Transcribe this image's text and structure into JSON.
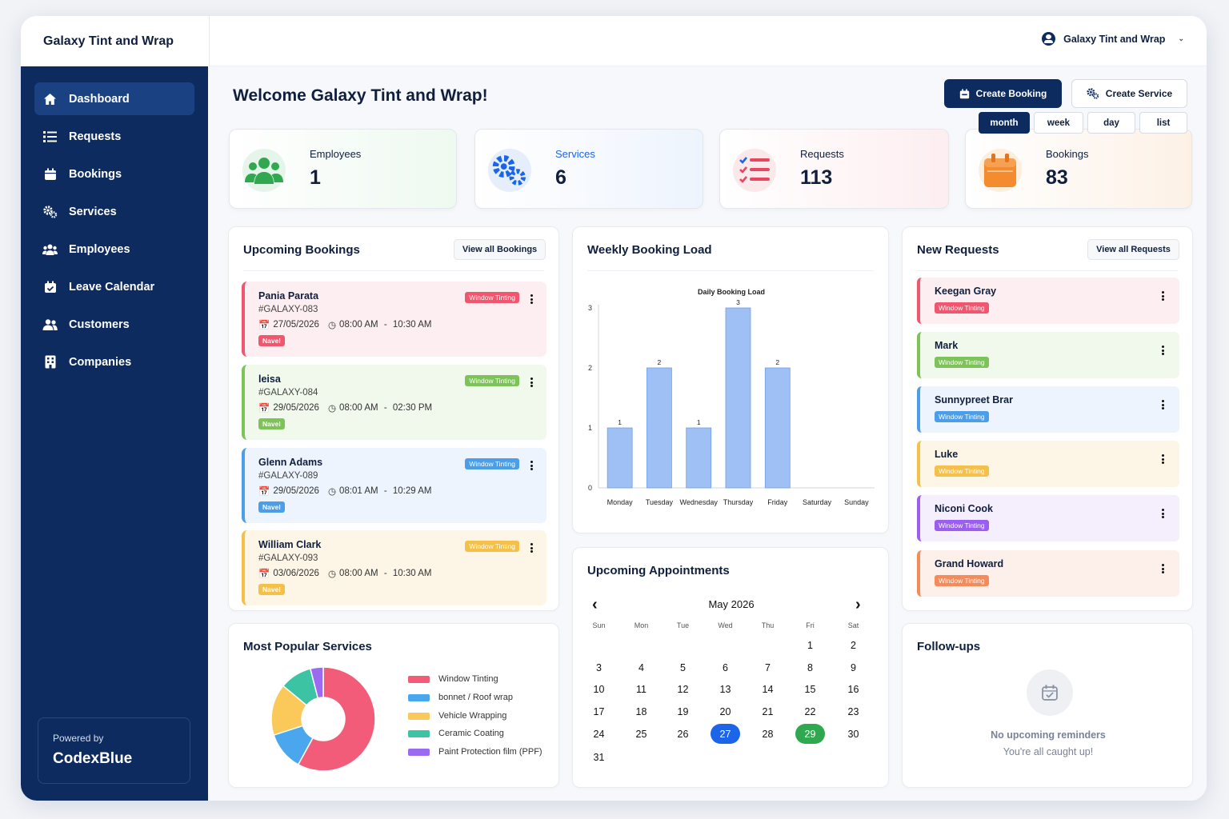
{
  "brand": "Galaxy Tint and Wrap",
  "user": {
    "name": "Galaxy Tint and Wrap"
  },
  "sidebar": {
    "items": [
      {
        "label": "Dashboard"
      },
      {
        "label": "Requests"
      },
      {
        "label": "Bookings"
      },
      {
        "label": "Services"
      },
      {
        "label": "Employees"
      },
      {
        "label": "Leave Calendar"
      },
      {
        "label": "Customers"
      },
      {
        "label": "Companies"
      }
    ],
    "powered_by": "Powered by",
    "company": "CodexBlue"
  },
  "header": {
    "welcome": "Welcome Galaxy Tint and Wrap!",
    "create_booking": "Create Booking",
    "create_service": "Create Service",
    "views": [
      "month",
      "week",
      "day",
      "list"
    ],
    "active_view": "month"
  },
  "stats": [
    {
      "label": "Employees",
      "value": "1",
      "icon": "users-icon",
      "color": "#2fa84f"
    },
    {
      "label": "Services",
      "value": "6",
      "icon": "gears-icon",
      "color": "#1c64e8"
    },
    {
      "label": "Requests",
      "value": "113",
      "icon": "checklist-icon",
      "color": "#e8455f"
    },
    {
      "label": "Bookings",
      "value": "83",
      "icon": "calendar-icon",
      "color": "#f58b2f"
    }
  ],
  "upcoming_bookings": {
    "title": "Upcoming Bookings",
    "view_all": "View all Bookings",
    "items": [
      {
        "name": "Pania Parata",
        "code": "#GALAXY-083",
        "date": "27/05/2026",
        "start": "08:00 AM",
        "end": "10:30 AM",
        "location": "Navel",
        "service": "Window Tinting",
        "color": "#f0566e"
      },
      {
        "name": "leisa",
        "code": "#GALAXY-084",
        "date": "29/05/2026",
        "start": "08:00 AM",
        "end": "02:30 PM",
        "location": "Navel",
        "service": "Window Tinting",
        "color": "#7ec25a"
      },
      {
        "name": "Glenn Adams",
        "code": "#GALAXY-089",
        "date": "29/05/2026",
        "start": "08:01 AM",
        "end": "10:29 AM",
        "location": "Navel",
        "service": "Window Tinting",
        "color": "#4d9ee8"
      },
      {
        "name": "William Clark",
        "code": "#GALAXY-093",
        "date": "03/06/2026",
        "start": "08:00 AM",
        "end": "10:30 AM",
        "location": "Navel",
        "service": "Window Tinting",
        "color": "#f5c04a"
      }
    ]
  },
  "weekly_load": {
    "title": "Weekly Booking Load"
  },
  "chart_data": {
    "type": "bar",
    "title": "Daily Booking Load",
    "categories": [
      "Monday",
      "Tuesday",
      "Wednesday",
      "Thursday",
      "Friday",
      "Saturday",
      "Sunday"
    ],
    "values": [
      1,
      2,
      1,
      3,
      2,
      0,
      0
    ],
    "ylim": [
      0,
      3
    ],
    "yticks": [
      0,
      1,
      2,
      3
    ],
    "bar_color": "#9fc0f5"
  },
  "popular_services": {
    "title": "Most Popular Services",
    "items": [
      {
        "label": "Window Tinting",
        "color": "#f25c78",
        "share": 0.58
      },
      {
        "label": "bonnet / Roof wrap",
        "color": "#4aa7ee",
        "share": 0.12
      },
      {
        "label": "Vehicle Wrapping",
        "color": "#fbc95a",
        "share": 0.16
      },
      {
        "label": "Ceramic Coating",
        "color": "#3cc3a4",
        "share": 0.1
      },
      {
        "label": "Paint Protection film (PPF)",
        "color": "#9a6bf0",
        "share": 0.04
      }
    ]
  },
  "appointments": {
    "title": "Upcoming Appointments",
    "month": "May 2026",
    "weekdays": [
      "Sun",
      "Mon",
      "Tue",
      "Wed",
      "Thu",
      "Fri",
      "Sat"
    ],
    "days": [
      "1",
      "2",
      "3",
      "4",
      "5",
      "6",
      "7",
      "8",
      "9",
      "10",
      "11",
      "12",
      "13",
      "14",
      "15",
      "16",
      "17",
      "18",
      "19",
      "20",
      "21",
      "22",
      "23",
      "24",
      "25",
      "26",
      "27",
      "28",
      "29",
      "30",
      "31"
    ],
    "first_weekday": 5,
    "highlight_blue": "27",
    "highlight_green": "29"
  },
  "new_requests": {
    "title": "New Requests",
    "view_all": "View all Requests",
    "items": [
      {
        "name": "Keegan Gray",
        "service": "Window Tinting",
        "color": "#f0566e"
      },
      {
        "name": "Mark",
        "service": "Window Tinting",
        "color": "#7ec25a"
      },
      {
        "name": "Sunnypreet Brar",
        "service": "Window Tinting",
        "color": "#4d9ee8"
      },
      {
        "name": "Luke",
        "service": "Window Tinting",
        "color": "#f5c04a"
      },
      {
        "name": "Niconi Cook",
        "service": "Window Tinting",
        "color": "#9a5ef0"
      },
      {
        "name": "Grand Howard",
        "service": "Window Tinting",
        "color": "#f58b5a"
      }
    ]
  },
  "followups": {
    "title": "Follow-ups",
    "empty_title": "No upcoming reminders",
    "empty_sub": "You're all caught up!"
  }
}
